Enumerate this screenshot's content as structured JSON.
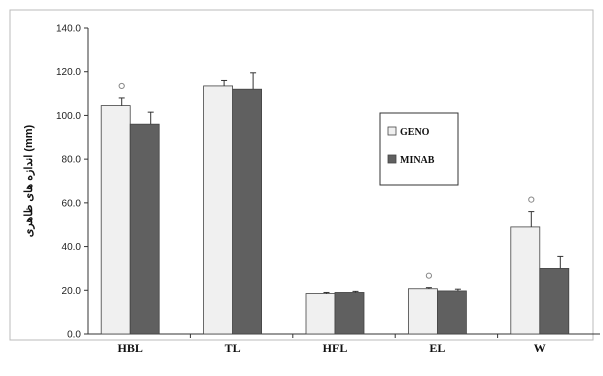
{
  "chart_data": {
    "type": "bar",
    "title": "",
    "xlabel": "",
    "ylabel": "(mm) اندازه های ظاهری",
    "ylim": [
      0,
      140
    ],
    "yticks": [
      "0.0",
      "20.0",
      "40.0",
      "60.0",
      "80.0",
      "100.0",
      "120.0",
      "140.0"
    ],
    "categories": [
      "HBL",
      "TL",
      "HFL",
      "EL",
      "W"
    ],
    "series": [
      {
        "name": "GENO",
        "color": "#f0f0f0",
        "values": [
          104.5,
          113.5,
          18.5,
          20.7,
          49.0
        ],
        "errors": [
          3.5,
          2.5,
          0.5,
          0.5,
          7.0
        ]
      },
      {
        "name": "MINAB",
        "color": "#606060",
        "values": [
          96.0,
          112.0,
          19.0,
          19.7,
          30.0
        ],
        "errors": [
          5.5,
          7.5,
          0.5,
          0.8,
          5.5
        ]
      }
    ],
    "significance_marker": "ø",
    "significant_categories": [
      "HBL",
      "EL",
      "W"
    ],
    "grid": false,
    "legend_position": "right"
  }
}
